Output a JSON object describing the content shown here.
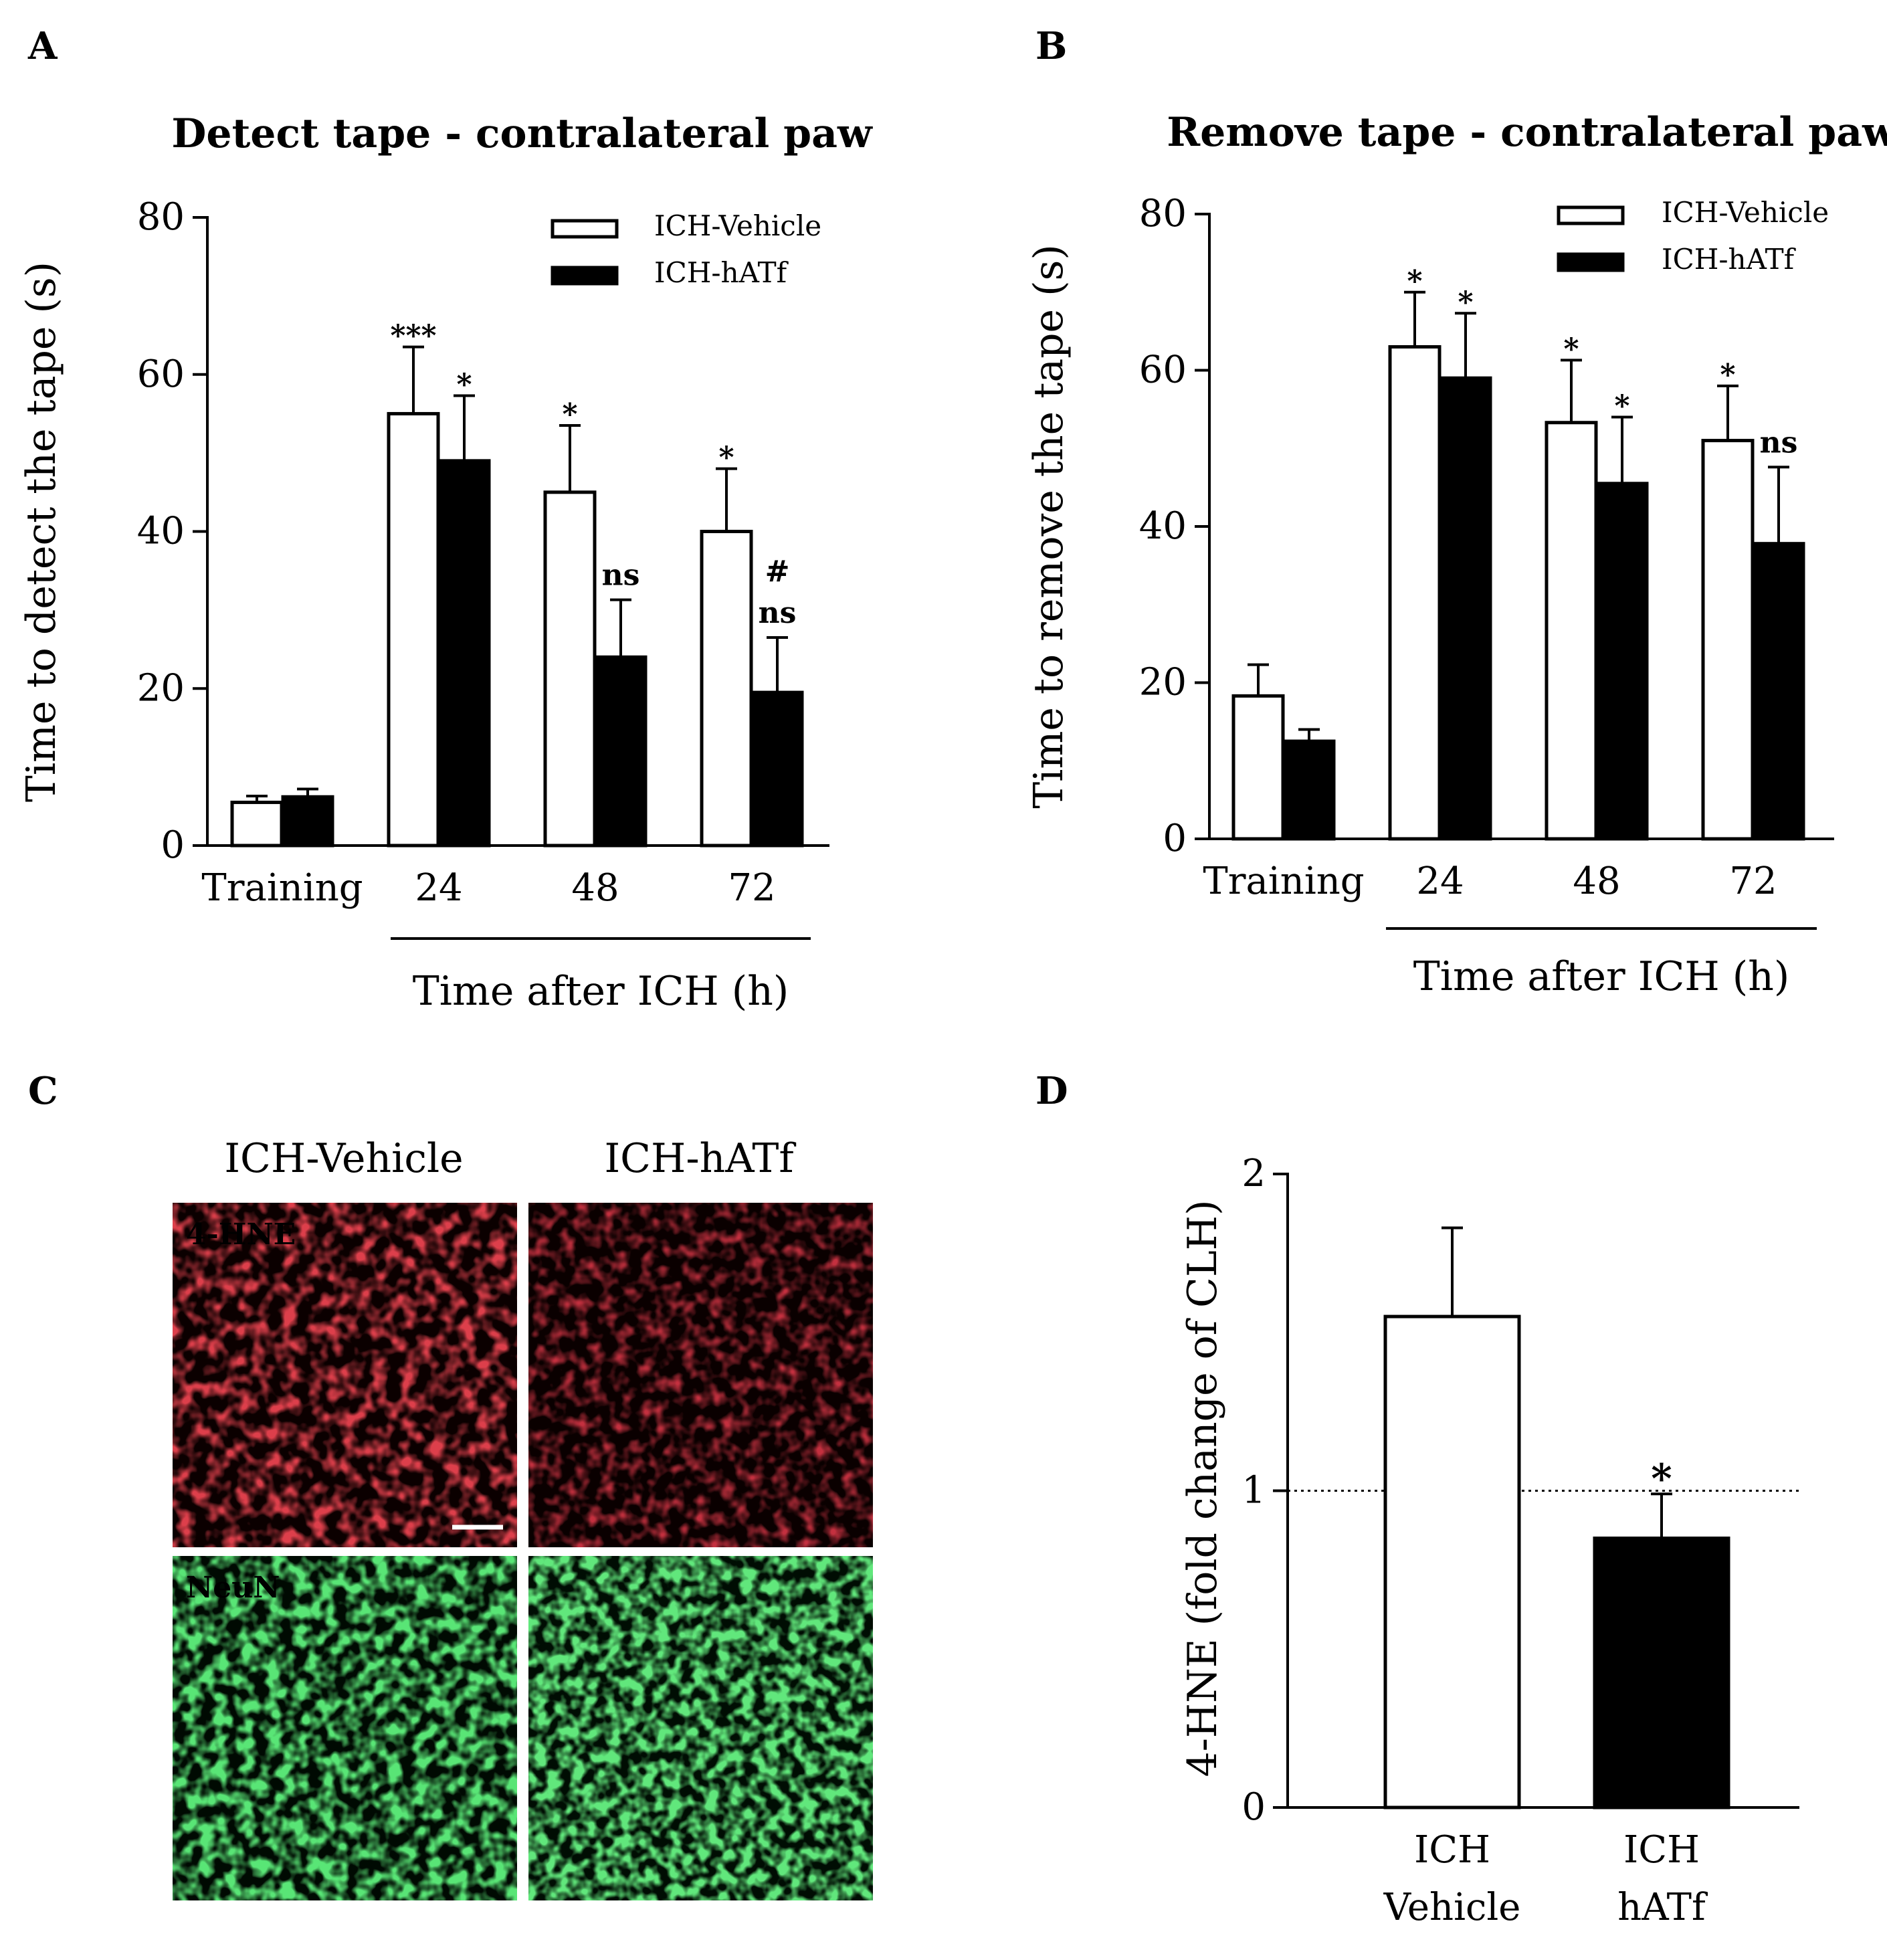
{
  "panels": {
    "A": {
      "letter": "A"
    },
    "B": {
      "letter": "B"
    },
    "C": {
      "letter": "C",
      "columns": [
        "ICH-Vehicle",
        "ICH-hATf"
      ],
      "rows": [
        "4-HNE",
        "NeuN"
      ],
      "row_colors": {
        "4-HNE": "#b0141a",
        "NeuN": "#1fbf2f"
      }
    },
    "D": {
      "letter": "D"
    }
  },
  "chart_data": [
    {
      "id": "A",
      "type": "bar",
      "title": "Detect tape - contralateral paw",
      "ylabel": "Time to detect the tape (s)",
      "xlabel": "Time after ICH (h)",
      "categories": [
        "Training",
        "24",
        "48",
        "72"
      ],
      "ylim": [
        0,
        80
      ],
      "yticks": [
        0,
        20,
        40,
        60,
        80
      ],
      "legend_position": "top-right",
      "series": [
        {
          "name": "ICH-Vehicle",
          "fill": "#ffffff",
          "values": [
            5.5,
            55,
            45,
            40
          ],
          "errors": [
            0.8,
            8.5,
            8.5,
            8
          ]
        },
        {
          "name": "ICH-hATf",
          "fill": "#000000",
          "values": [
            6.2,
            49,
            24,
            19.5
          ],
          "errors": [
            1,
            8.3,
            7.3,
            7
          ]
        }
      ],
      "annotations": [
        {
          "category": 1,
          "series": 0,
          "lines": [
            "***"
          ]
        },
        {
          "category": 1,
          "series": 1,
          "lines": [
            "*"
          ]
        },
        {
          "category": 2,
          "series": 0,
          "lines": [
            "*"
          ]
        },
        {
          "category": 2,
          "series": 1,
          "lines": [
            "ns"
          ]
        },
        {
          "category": 3,
          "series": 0,
          "lines": [
            "*"
          ]
        },
        {
          "category": 3,
          "series": 1,
          "lines": [
            "#",
            "ns"
          ]
        }
      ]
    },
    {
      "id": "B",
      "type": "bar",
      "title": "Remove tape - contralateral paw",
      "ylabel": "Time to remove the tape (s)",
      "xlabel": "Time after ICH (h)",
      "categories": [
        "Training",
        "24",
        "48",
        "72"
      ],
      "ylim": [
        0,
        80
      ],
      "yticks": [
        0,
        20,
        40,
        60,
        80
      ],
      "legend_position": "top-right",
      "series": [
        {
          "name": "ICH-Vehicle",
          "fill": "#ffffff",
          "values": [
            18.3,
            63,
            53.3,
            51
          ],
          "errors": [
            4,
            7,
            8,
            7
          ]
        },
        {
          "name": "ICH-hATf",
          "fill": "#000000",
          "values": [
            12.5,
            59,
            45.5,
            37.8
          ],
          "errors": [
            1.5,
            8.3,
            8.5,
            9.8
          ]
        }
      ],
      "annotations": [
        {
          "category": 1,
          "series": 0,
          "lines": [
            "*"
          ]
        },
        {
          "category": 1,
          "series": 1,
          "lines": [
            "*"
          ]
        },
        {
          "category": 2,
          "series": 0,
          "lines": [
            "*"
          ]
        },
        {
          "category": 2,
          "series": 1,
          "lines": [
            "*"
          ]
        },
        {
          "category": 3,
          "series": 0,
          "lines": [
            "*"
          ]
        },
        {
          "category": 3,
          "series": 1,
          "lines": [
            "ns"
          ]
        }
      ]
    },
    {
      "id": "D",
      "type": "bar",
      "ylabel": "4-HNE (fold change of CLH)",
      "categories": [
        [
          "ICH",
          "Vehicle"
        ],
        [
          "ICH",
          "hATf"
        ]
      ],
      "ylim": [
        0,
        2
      ],
      "yticks": [
        0,
        1,
        2
      ],
      "reference_line": 1,
      "series": [
        {
          "fill": [
            "#ffffff",
            "#000000"
          ],
          "values": [
            1.55,
            0.85
          ],
          "errors": [
            0.28,
            0.14
          ]
        }
      ],
      "annotations": [
        {
          "category": 1,
          "series": 0,
          "lines": [
            "*"
          ]
        }
      ]
    }
  ]
}
